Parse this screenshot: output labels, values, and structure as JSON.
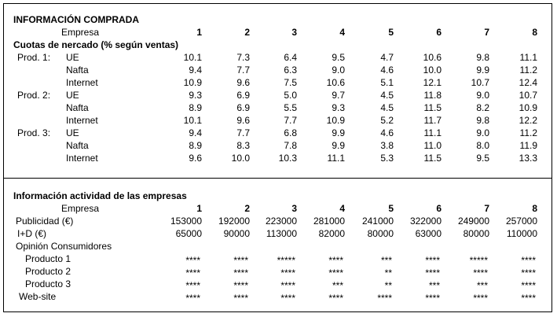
{
  "section1": {
    "title": "INFORMACIÓN COMPRADA",
    "header_label": "Empresa",
    "columns": [
      1,
      2,
      3,
      4,
      5,
      6,
      7,
      8
    ],
    "subtitle": "Cuotas de nercado (% según ventas)",
    "groups": [
      {
        "label": "Prod. 1:",
        "rows": [
          {
            "label": "UE",
            "values": [
              "10.1",
              "7.3",
              "6.4",
              "9.5",
              "4.7",
              "10.6",
              "9.8",
              "11.1"
            ]
          },
          {
            "label": "Nafta",
            "values": [
              "9.4",
              "7.7",
              "6.3",
              "9.0",
              "4.6",
              "10.0",
              "9.9",
              "11.2"
            ]
          },
          {
            "label": "Internet",
            "values": [
              "10.9",
              "9.6",
              "7.5",
              "10.6",
              "5.1",
              "12.1",
              "10.7",
              "12.4"
            ]
          }
        ]
      },
      {
        "label": "Prod. 2:",
        "rows": [
          {
            "label": "UE",
            "values": [
              "9.3",
              "6.9",
              "5.0",
              "9.7",
              "4.5",
              "11.8",
              "9.0",
              "10.7"
            ]
          },
          {
            "label": "Nafta",
            "values": [
              "8.9",
              "6.9",
              "5.5",
              "9.3",
              "4.5",
              "11.5",
              "8.2",
              "10.9"
            ]
          },
          {
            "label": "Internet",
            "values": [
              "10.1",
              "9.6",
              "7.7",
              "10.9",
              "5.2",
              "11.7",
              "9.8",
              "12.2"
            ]
          }
        ]
      },
      {
        "label": "Prod. 3:",
        "rows": [
          {
            "label": "UE",
            "values": [
              "9.4",
              "7.7",
              "6.8",
              "9.9",
              "4.6",
              "11.1",
              "9.0",
              "11.2"
            ]
          },
          {
            "label": "Nafta",
            "values": [
              "8.9",
              "8.3",
              "7.8",
              "9.9",
              "3.8",
              "11.0",
              "8.0",
              "11.9"
            ]
          },
          {
            "label": "Internet",
            "values": [
              "9.6",
              "10.0",
              "10.3",
              "11.1",
              "5.3",
              "11.5",
              "9.5",
              "13.3"
            ]
          }
        ]
      }
    ]
  },
  "section2": {
    "title": "Información actividad de las empresas",
    "header_label": "Empresa",
    "columns": [
      1,
      2,
      3,
      4,
      5,
      6,
      7,
      8
    ],
    "rows": [
      {
        "label": "Publicidad (€)",
        "values": [
          153000,
          192000,
          223000,
          281000,
          241000,
          322000,
          249000,
          257000
        ]
      },
      {
        "label": "I+D (€)",
        "values": [
          65000,
          90000,
          113000,
          82000,
          80000,
          63000,
          80000,
          110000
        ]
      }
    ],
    "opinion_label": "Opinión Consumidores",
    "opinion_rows": [
      {
        "label": "Producto 1",
        "values": [
          "****",
          "****",
          "*****",
          "****",
          "***",
          "****",
          "*****",
          "****"
        ]
      },
      {
        "label": "Producto 2",
        "values": [
          "****",
          "****",
          "****",
          "****",
          "**",
          "****",
          "****",
          "****"
        ]
      },
      {
        "label": "Producto 3",
        "values": [
          "****",
          "****",
          "****",
          "***",
          "**",
          "***",
          "***",
          "****"
        ]
      }
    ],
    "website": {
      "label": "Web-site",
      "values": [
        "****",
        "****",
        "****",
        "****",
        "****",
        "****",
        "****",
        "****"
      ]
    }
  }
}
